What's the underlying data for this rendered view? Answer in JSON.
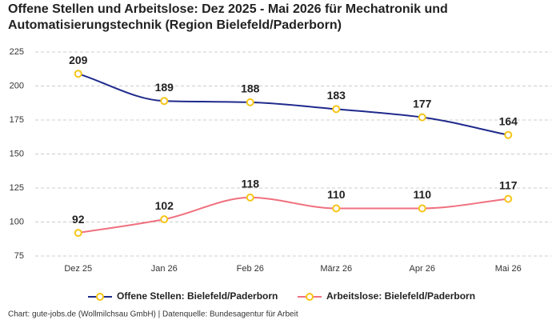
{
  "chart_data": {
    "type": "line",
    "title": "Offene Stellen und Arbeitslose: Dez 2025 - Mai 2026 für Mechatronik und Automatisierungstechnik (Region Bielefeld/Paderborn)",
    "categories": [
      "Dez 25",
      "Jan 26",
      "Feb 26",
      "März 26",
      "Apr 26",
      "Mai 26"
    ],
    "series": [
      {
        "name": "Offene Stellen: Bielefeld/Paderborn",
        "color": "#1f2a8c",
        "values": [
          209,
          189,
          188,
          183,
          177,
          164
        ]
      },
      {
        "name": "Arbeitslose: Bielefeld/Paderborn",
        "color": "#f0707f",
        "values": [
          92,
          102,
          118,
          110,
          110,
          117
        ]
      }
    ],
    "marker_color": "#f5c518",
    "ylim": [
      75,
      225
    ],
    "yticks": [
      75,
      100,
      125,
      150,
      175,
      200,
      225
    ],
    "grid": true,
    "legend": "bottom",
    "source": "Chart: gute-jobs.de (Wollmilchsau GmbH) | Datenquelle: Bundesagentur für Arbeit"
  }
}
